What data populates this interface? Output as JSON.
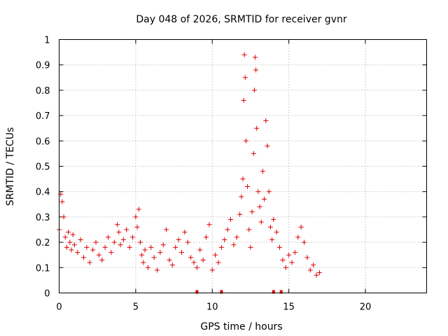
{
  "chart_data": {
    "type": "scatter",
    "title": "Day 048 of 2026, SRMTID for receiver gvnr",
    "xlabel": "GPS time / hours",
    "ylabel": "SRMTID / TECUs",
    "xlim": [
      0,
      24
    ],
    "ylim": [
      0,
      1
    ],
    "x_ticks": [
      0,
      5,
      10,
      15,
      20
    ],
    "x_tick_labels": [
      "0",
      "5",
      "10",
      "15",
      "20"
    ],
    "y_ticks": [
      0,
      0.1,
      0.2,
      0.3,
      0.4,
      0.5,
      0.6,
      0.7,
      0.8,
      0.9,
      1
    ],
    "y_tick_labels": [
      "0",
      "0.1",
      "0.2",
      "0.3",
      "0.4",
      "0.5",
      "0.6",
      "0.7",
      "0.8",
      "0.9",
      "1"
    ],
    "grid": true,
    "marker": "+",
    "color": "#e00000",
    "series": [
      {
        "name": "SRMTID",
        "x": [
          0.0,
          0.1,
          0.2,
          0.3,
          0.4,
          0.5,
          0.6,
          0.7,
          0.8,
          0.9,
          1.0,
          1.2,
          1.4,
          1.6,
          1.8,
          2.0,
          2.2,
          2.4,
          2.6,
          2.8,
          3.0,
          3.2,
          3.4,
          3.6,
          3.8,
          3.9,
          4.0,
          4.2,
          4.4,
          4.6,
          4.8,
          5.0,
          5.1,
          5.2,
          5.3,
          5.4,
          5.5,
          5.6,
          5.8,
          6.0,
          6.2,
          6.4,
          6.6,
          6.8,
          7.0,
          7.2,
          7.4,
          7.6,
          7.8,
          8.0,
          8.2,
          8.4,
          8.6,
          8.8,
          9.0,
          9.2,
          9.4,
          9.6,
          9.8,
          10.0,
          10.2,
          10.4,
          10.6,
          10.8,
          11.0,
          11.2,
          11.4,
          11.6,
          11.8,
          11.9,
          12.0,
          12.05,
          12.1,
          12.15,
          12.2,
          12.3,
          12.4,
          12.5,
          12.6,
          12.7,
          12.75,
          12.8,
          12.85,
          12.9,
          13.0,
          13.1,
          13.2,
          13.3,
          13.4,
          13.5,
          13.6,
          13.7,
          13.8,
          13.9,
          14.0,
          14.2,
          14.4,
          14.6,
          14.8,
          15.0,
          15.2,
          15.4,
          15.6,
          15.8,
          16.0,
          16.2,
          16.4,
          16.6,
          16.8,
          17.0
        ],
        "y": [
          0.25,
          0.39,
          0.36,
          0.3,
          0.22,
          0.18,
          0.24,
          0.2,
          0.17,
          0.23,
          0.19,
          0.16,
          0.21,
          0.14,
          0.18,
          0.12,
          0.17,
          0.2,
          0.15,
          0.13,
          0.18,
          0.22,
          0.16,
          0.2,
          0.27,
          0.24,
          0.19,
          0.21,
          0.25,
          0.18,
          0.22,
          0.3,
          0.26,
          0.33,
          0.2,
          0.15,
          0.12,
          0.17,
          0.1,
          0.18,
          0.14,
          0.09,
          0.16,
          0.19,
          0.25,
          0.13,
          0.11,
          0.18,
          0.21,
          0.16,
          0.24,
          0.2,
          0.14,
          0.12,
          0.1,
          0.17,
          0.13,
          0.22,
          0.27,
          0.09,
          0.15,
          0.12,
          0.18,
          0.21,
          0.25,
          0.29,
          0.19,
          0.22,
          0.31,
          0.38,
          0.45,
          0.76,
          0.94,
          0.85,
          0.6,
          0.42,
          0.25,
          0.18,
          0.32,
          0.55,
          0.8,
          0.93,
          0.88,
          0.65,
          0.4,
          0.34,
          0.28,
          0.48,
          0.37,
          0.68,
          0.58,
          0.4,
          0.26,
          0.21,
          0.29,
          0.24,
          0.18,
          0.13,
          0.1,
          0.15,
          0.12,
          0.16,
          0.22,
          0.26,
          0.2,
          0.14,
          0.09,
          0.11,
          0.07,
          0.08
        ],
        "rug_x": [
          9.0,
          10.6,
          14.0,
          14.5
        ]
      }
    ]
  }
}
